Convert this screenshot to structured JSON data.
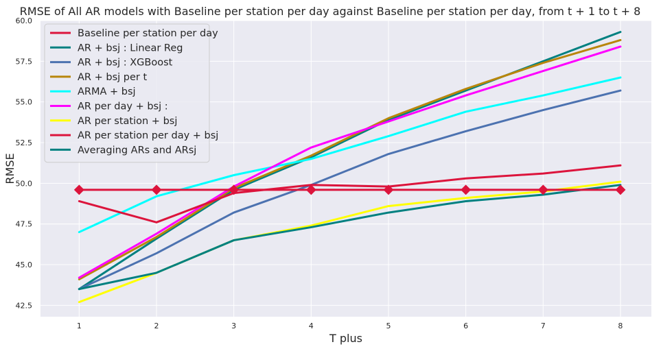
{
  "chart_data": {
    "type": "line",
    "title": "RMSE of All AR models with Baseline per station per day against Baseline per station per day, from t + 1 to t + 8",
    "xlabel": "T plus",
    "ylabel": "RMSE",
    "x": [
      1,
      2,
      3,
      4,
      5,
      6,
      7,
      8
    ],
    "xlim": [
      0.5,
      8.4
    ],
    "ylim": [
      41.8,
      60.0
    ],
    "yticks": [
      "42.5",
      "45.0",
      "47.5",
      "50.0",
      "52.5",
      "55.0",
      "57.5",
      "60.0"
    ],
    "xticks": [
      "1",
      "2",
      "3",
      "4",
      "5",
      "6",
      "7",
      "8"
    ],
    "grid": true,
    "legend_position": "top-left",
    "background": "#eaeaf2",
    "series": [
      {
        "name": "Baseline per station per day",
        "color": "#dc143c",
        "marker": "diamond",
        "values": [
          49.6,
          49.6,
          49.6,
          49.6,
          49.6,
          49.6,
          49.6,
          49.6
        ]
      },
      {
        "name": "AR + bsj : Linear Reg",
        "color": "#008080",
        "values": [
          43.5,
          46.6,
          49.6,
          51.6,
          53.9,
          55.7,
          57.5,
          59.3
        ]
      },
      {
        "name": "AR + bsj : XGBoost",
        "color": "#4c72b0",
        "values": [
          43.5,
          45.7,
          48.2,
          49.9,
          51.8,
          53.2,
          54.5,
          55.7
        ]
      },
      {
        "name": "AR + bsj per t",
        "color": "#b8860b",
        "values": [
          44.1,
          46.7,
          49.7,
          51.7,
          54.0,
          55.8,
          57.4,
          58.8
        ]
      },
      {
        "name": "ARMA + bsj",
        "color": "#00ffff",
        "values": [
          47.0,
          49.2,
          50.5,
          51.5,
          52.9,
          54.4,
          55.4,
          56.5
        ]
      },
      {
        "name": "AR per day + bsj :",
        "color": "#ff00ff",
        "values": [
          44.2,
          46.9,
          49.8,
          52.2,
          53.8,
          55.4,
          56.9,
          58.4
        ]
      },
      {
        "name": "AR per station + bsj",
        "color": "#ffff00",
        "values": [
          42.7,
          44.5,
          46.5,
          47.4,
          48.6,
          49.1,
          49.5,
          50.1
        ]
      },
      {
        "name": "AR per station per day + bsj",
        "color": "#dc143c",
        "values": [
          48.9,
          47.6,
          49.4,
          49.9,
          49.8,
          50.3,
          50.6,
          51.1
        ]
      },
      {
        "name": "Averaging ARs and ARsj",
        "color": "#008080",
        "values": [
          43.5,
          44.5,
          46.5,
          47.3,
          48.2,
          48.9,
          49.3,
          49.9
        ]
      }
    ]
  }
}
